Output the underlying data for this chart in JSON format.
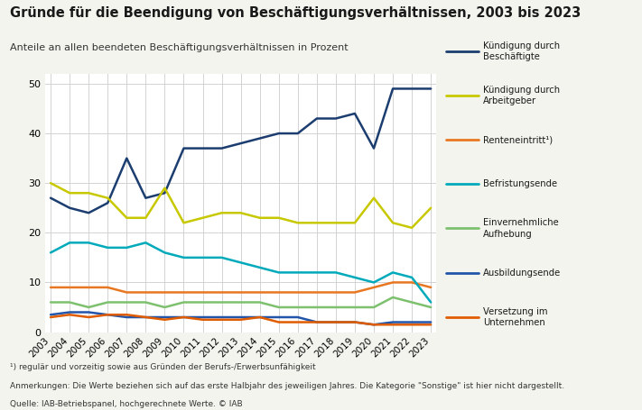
{
  "title": "Gründe für die Beendigung von Beschäftigungsverhältnissen, 2003 bis 2023",
  "subtitle": "Anteile an allen beendeten Beschäftigungsverhältnissen in Prozent",
  "footnote1": "¹) regulär und vorzeitig sowie aus Gründen der Berufs-/Erwerbsunfähigkeit",
  "footnote2": "Anmerkungen: Die Werte beziehen sich auf das erste Halbjahr des jeweiligen Jahres. Die Kategorie \"Sonstige\" ist hier nicht dargestellt.",
  "footnote3": "Quelle: IAB-Betriebspanel, hochgerechnete Werte. © IAB",
  "years": [
    2003,
    2004,
    2005,
    2006,
    2007,
    2008,
    2009,
    2010,
    2011,
    2012,
    2013,
    2014,
    2015,
    2016,
    2017,
    2018,
    2019,
    2020,
    2021,
    2022,
    2023
  ],
  "series": [
    {
      "name": "Kündigung durch\nBeschäftigte",
      "color": "#1b3d6f",
      "linewidth": 1.8,
      "values": [
        27,
        25,
        24,
        26,
        35,
        27,
        28,
        37,
        37,
        37,
        38,
        39,
        40,
        40,
        43,
        43,
        44,
        37,
        49,
        49,
        49
      ]
    },
    {
      "name": "Kündigung durch\nArbeitgeber",
      "color": "#c8c800",
      "linewidth": 1.8,
      "values": [
        30,
        28,
        28,
        27,
        23,
        23,
        29,
        22,
        23,
        24,
        24,
        23,
        23,
        22,
        22,
        22,
        22,
        27,
        22,
        21,
        25
      ]
    },
    {
      "name": "Renteneintritt¹)",
      "color": "#e87722",
      "linewidth": 1.8,
      "values": [
        9,
        9,
        9,
        9,
        8,
        8,
        8,
        8,
        8,
        8,
        8,
        8,
        8,
        8,
        8,
        8,
        8,
        9,
        10,
        10,
        9
      ]
    },
    {
      "name": "Befristungsende",
      "color": "#00aabb",
      "linewidth": 1.8,
      "values": [
        16,
        18,
        18,
        17,
        17,
        18,
        16,
        15,
        15,
        15,
        14,
        13,
        12,
        12,
        12,
        12,
        11,
        10,
        12,
        11,
        6
      ]
    },
    {
      "name": "Einvernehmliche\nAufhebung",
      "color": "#7dc06e",
      "linewidth": 1.8,
      "values": [
        6,
        6,
        5,
        6,
        6,
        6,
        5,
        6,
        6,
        6,
        6,
        6,
        5,
        5,
        5,
        5,
        5,
        5,
        7,
        6,
        5
      ]
    },
    {
      "name": "Ausbildungsende",
      "color": "#2255aa",
      "linewidth": 1.8,
      "values": [
        3.5,
        4,
        4,
        3.5,
        3,
        3,
        3,
        3,
        3,
        3,
        3,
        3,
        3,
        3,
        2,
        2,
        2,
        1.5,
        2,
        2,
        2
      ]
    },
    {
      "name": "Versetzung im\nUnternehmen",
      "color": "#e05c00",
      "linewidth": 1.8,
      "values": [
        3,
        3.5,
        3,
        3.5,
        3.5,
        3,
        2.5,
        3,
        2.5,
        2.5,
        2.5,
        3,
        2,
        2,
        2,
        2,
        2,
        1.5,
        1.5,
        1.5,
        1.5
      ]
    }
  ],
  "ylim": [
    0,
    52
  ],
  "yticks": [
    0,
    10,
    20,
    30,
    40,
    50
  ],
  "bg_color": "#f4f4ef",
  "plot_bg": "#ffffff",
  "grid_color": "#cccccc"
}
